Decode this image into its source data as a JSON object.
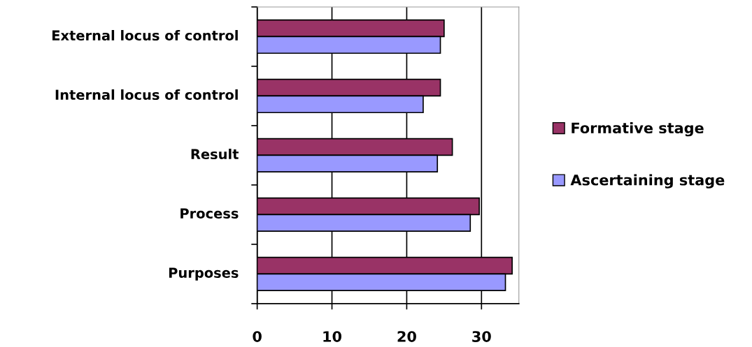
{
  "chart_data": {
    "type": "bar",
    "orientation": "horizontal",
    "categories": [
      "External locus of control",
      "Internal locus of control",
      "Result",
      "Process",
      "Purposes"
    ],
    "series": [
      {
        "name": "Formative stage",
        "color": "#993366",
        "values": [
          25,
          24.5,
          26.1,
          29.7,
          34.1
        ]
      },
      {
        "name": "Ascertaining stage",
        "color": "#9999ff",
        "values": [
          24.5,
          22.2,
          24.1,
          28.5,
          33.2
        ]
      }
    ],
    "xlim": [
      0,
      35
    ],
    "xticks": [
      0,
      10,
      20,
      30
    ],
    "grid": "x",
    "legend": "right"
  }
}
